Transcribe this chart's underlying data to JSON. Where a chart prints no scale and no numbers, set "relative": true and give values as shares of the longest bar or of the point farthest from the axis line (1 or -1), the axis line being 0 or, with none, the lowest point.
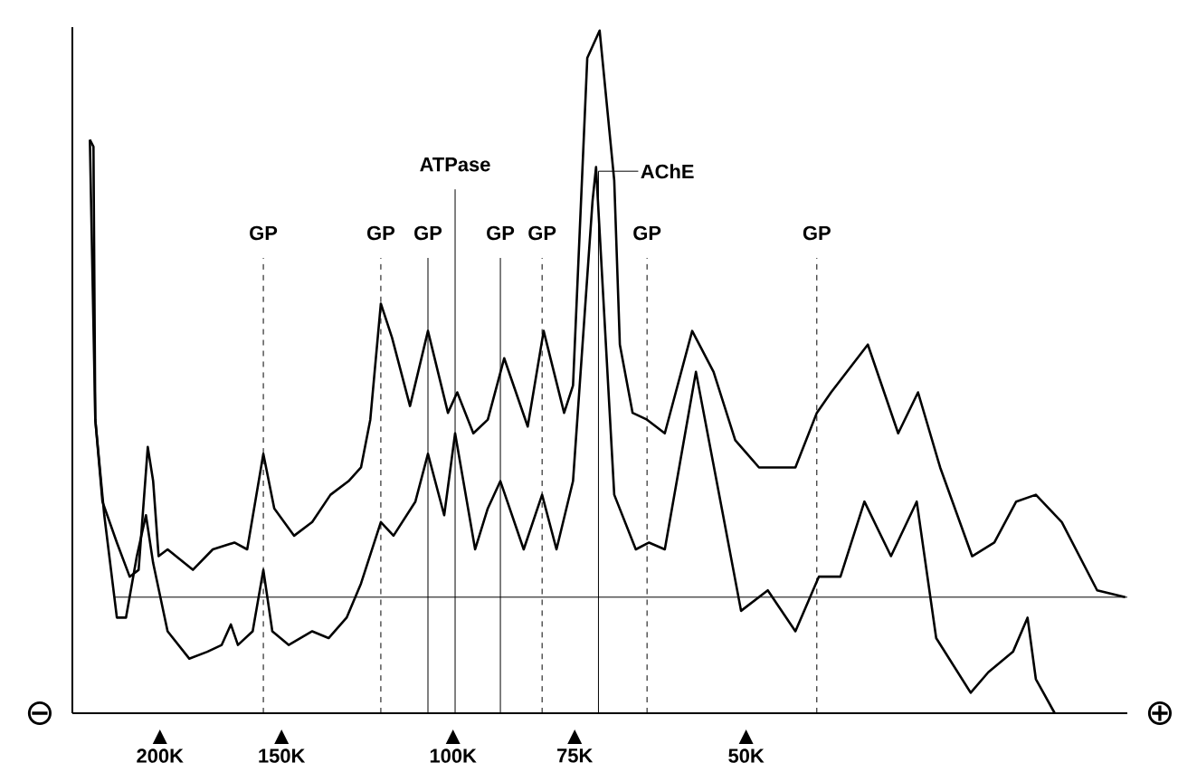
{
  "chart_data": {
    "type": "line",
    "relative": true,
    "marker": "none",
    "log": "x",
    "xlim": [
      246000,
      20300
    ],
    "xticks": [
      {
        "value": 200000,
        "label": "200K"
      },
      {
        "value": 150000,
        "label": "150K"
      },
      {
        "value": 100000,
        "label": "100K"
      },
      {
        "value": 75000,
        "label": "75K"
      },
      {
        "value": 50000,
        "label": "50K"
      }
    ],
    "series": [
      {
        "color": "#000000",
        "x": [
          236000,
          234000,
          233000,
          229100,
          221400,
          214800,
          210300,
          205800,
          203200,
          200600,
          196400,
          185000,
          176500,
          167700,
          162700,
          156600,
          152600,
          145600,
          139500,
          133600,
          128000,
          124300,
          121600,
          118600,
          115500,
          110700,
          106100,
          101200,
          99000,
          95300,
          92100,
          88600,
          83800,
          80700,
          76900,
          75300,
          72800,
          70700,
          68300,
          67400,
          65400,
          63200,
          60600,
          56800,
          54000,
          51300,
          48500,
          47100,
          44500,
          42300,
          40900,
          37500,
          34900,
          33300,
          31600,
          29300,
          27800,
          26400,
          25200,
          23700,
          21800,
          20400
        ],
        "values": [
          0.84,
          0.83,
          0.43,
          0.31,
          0.25,
          0.2,
          0.21,
          0.39,
          0.34,
          0.23,
          0.24,
          0.21,
          0.24,
          0.25,
          0.24,
          0.38,
          0.3,
          0.26,
          0.28,
          0.32,
          0.34,
          0.36,
          0.43,
          0.6,
          0.55,
          0.45,
          0.56,
          0.44,
          0.47,
          0.41,
          0.43,
          0.52,
          0.42,
          0.56,
          0.44,
          0.48,
          0.96,
          1.0,
          0.78,
          0.54,
          0.44,
          0.43,
          0.41,
          0.56,
          0.5,
          0.4,
          0.36,
          0.36,
          0.36,
          0.44,
          0.47,
          0.54,
          0.41,
          0.47,
          0.36,
          0.23,
          0.25,
          0.31,
          0.32,
          0.28,
          0.18,
          0.17
        ]
      },
      {
        "color": "#000000",
        "x": [
          236000,
          233000,
          228100,
          221400,
          216700,
          211200,
          206700,
          203200,
          196400,
          186600,
          178800,
          172800,
          169100,
          166300,
          160600,
          156600,
          153300,
          147500,
          139500,
          134200,
          128600,
          124300,
          118600,
          115100,
          109300,
          106100,
          102100,
          99500,
          94900,
          92100,
          89400,
          84600,
          81000,
          78300,
          75300,
          71900,
          71300,
          68300,
          64900,
          62900,
          60600,
          56300,
          52800,
          50600,
          47500,
          44500,
          42100,
          40000,
          37800,
          35500,
          33400,
          31900,
          29400,
          28200,
          26600,
          25700,
          25200,
          24100
        ],
        "values": [
          0.84,
          0.43,
          0.29,
          0.14,
          0.14,
          0.23,
          0.29,
          0.22,
          0.12,
          0.08,
          0.09,
          0.1,
          0.13,
          0.1,
          0.12,
          0.21,
          0.12,
          0.1,
          0.12,
          0.11,
          0.14,
          0.19,
          0.28,
          0.26,
          0.31,
          0.38,
          0.29,
          0.41,
          0.24,
          0.3,
          0.34,
          0.24,
          0.32,
          0.24,
          0.34,
          0.75,
          0.8,
          0.32,
          0.24,
          0.25,
          0.24,
          0.5,
          0.29,
          0.15,
          0.18,
          0.12,
          0.2,
          0.2,
          0.31,
          0.23,
          0.31,
          0.11,
          0.03,
          0.06,
          0.09,
          0.14,
          0.05,
          0.0
        ]
      }
    ],
    "ref_lines": [
      {
        "axis": "x",
        "value": 156600,
        "label": "GP",
        "line_style": "dashed"
      },
      {
        "axis": "x",
        "value": 118600,
        "label": "GP",
        "line_style": "dashed"
      },
      {
        "axis": "x",
        "value": 106100,
        "label": "GP",
        "line_style": "solid"
      },
      {
        "axis": "x",
        "value": 99500,
        "label": "ATPase",
        "line_style": "solid"
      },
      {
        "axis": "x",
        "value": 89400,
        "label": "GP",
        "line_style": "solid"
      },
      {
        "axis": "x",
        "value": 81000,
        "label": "GP",
        "line_style": "dashed"
      },
      {
        "axis": "x",
        "value": 70900,
        "label": "AChE",
        "line_style": "solid"
      },
      {
        "axis": "x",
        "value": 63200,
        "label": "GP",
        "line_style": "dashed"
      },
      {
        "axis": "x",
        "value": 42300,
        "label": "GP",
        "line_style": "dashed"
      },
      {
        "axis": "y",
        "value": 0.17
      }
    ],
    "annotations": [
      "⊖",
      "⊕"
    ]
  }
}
